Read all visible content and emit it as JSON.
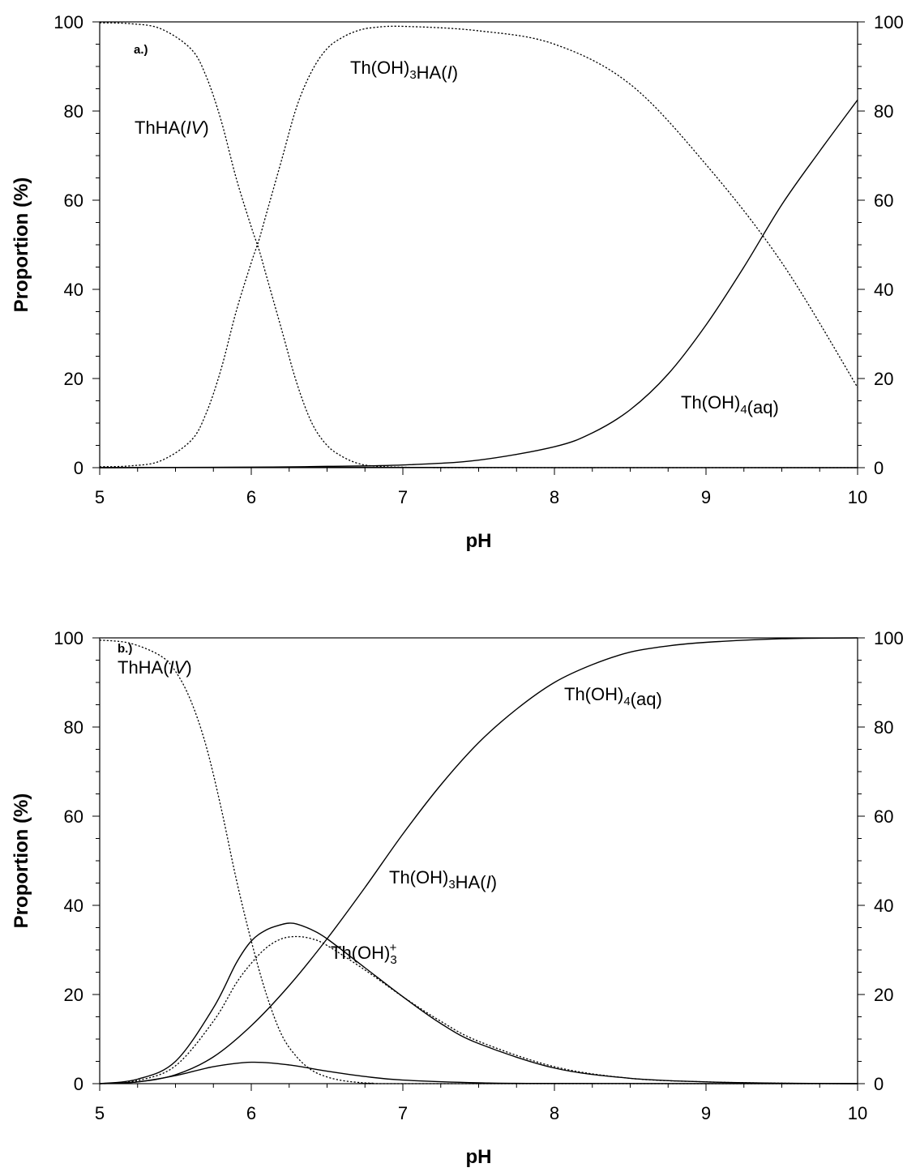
{
  "chart_data": [
    {
      "type": "line",
      "panel_label": "a.)",
      "xlabel": "pH",
      "ylabel": "Proportion (%)",
      "xlim": [
        5,
        10
      ],
      "ylim": [
        0,
        100
      ],
      "x_ticks": [
        "5",
        "6",
        "7",
        "8",
        "9",
        "10"
      ],
      "y_ticks": [
        "0",
        "20",
        "40",
        "60",
        "80",
        "100"
      ],
      "right_y_ticks": [
        "0",
        "20",
        "40",
        "60",
        "80",
        "100"
      ],
      "series": [
        {
          "label_parts": [
            {
              "t": "ThHA("
            },
            {
              "t": "IV",
              "it": true
            },
            {
              "t": ")"
            }
          ],
          "style": "dotted",
          "x": [
            5.0,
            5.2,
            5.4,
            5.6,
            5.7,
            5.8,
            5.9,
            6.0,
            6.05,
            6.1,
            6.2,
            6.3,
            6.4,
            6.5,
            6.6,
            6.7,
            6.8,
            7.0,
            7.5,
            10.0
          ],
          "y": [
            99.8,
            99.6,
            98.5,
            94.0,
            88.0,
            78.0,
            65.0,
            54.0,
            49.0,
            43.0,
            31.0,
            19.0,
            10.0,
            5.0,
            2.5,
            1.0,
            0.4,
            0.1,
            0.0,
            0.0
          ]
        },
        {
          "label_parts": [
            {
              "t": "Th(OH)"
            },
            {
              "t": "3",
              "sub": true
            },
            {
              "t": "HA("
            },
            {
              "t": "I",
              "it": true
            },
            {
              "t": ")"
            }
          ],
          "style": "dotted",
          "x": [
            5.0,
            5.2,
            5.4,
            5.6,
            5.7,
            5.8,
            5.9,
            6.0,
            6.05,
            6.1,
            6.2,
            6.3,
            6.4,
            6.5,
            6.6,
            6.7,
            6.8,
            7.0,
            7.5,
            8.0,
            8.5,
            9.0,
            9.5,
            10.0
          ],
          "y": [
            0.2,
            0.4,
            1.5,
            6.0,
            12.0,
            22.0,
            35.0,
            46.0,
            51.0,
            57.0,
            69.0,
            81.0,
            89.0,
            94.0,
            96.5,
            98.0,
            98.7,
            99.0,
            98.0,
            95.0,
            86.0,
            68.0,
            46.0,
            18.0
          ]
        },
        {
          "label_parts": [
            {
              "t": "Th(OH)"
            },
            {
              "t": "4",
              "sub": true
            },
            {
              "t": "(aq)"
            }
          ],
          "style": "solid",
          "x": [
            5.0,
            6.0,
            6.5,
            7.0,
            7.5,
            8.0,
            8.25,
            8.5,
            8.75,
            9.0,
            9.25,
            9.5,
            9.75,
            10.0
          ],
          "y": [
            0.0,
            0.1,
            0.3,
            0.6,
            1.7,
            4.7,
            7.8,
            13.0,
            21.0,
            32.0,
            45.0,
            59.0,
            71.0,
            82.5
          ]
        },
        {
          "label_parts": [],
          "style": "solid",
          "x": [
            5.0,
            5.5,
            6.0,
            6.5,
            7.0,
            8.0,
            10.0
          ],
          "y": [
            0.0,
            0.05,
            0.1,
            0.1,
            0.05,
            0.02,
            0.0
          ]
        }
      ]
    },
    {
      "type": "line",
      "panel_label": "b.)",
      "xlabel": "pH",
      "ylabel": "Proportion (%)",
      "xlim": [
        5,
        10
      ],
      "ylim": [
        0,
        100
      ],
      "x_ticks": [
        "5",
        "6",
        "7",
        "8",
        "9",
        "10"
      ],
      "y_ticks": [
        "0",
        "20",
        "40",
        "60",
        "80",
        "100"
      ],
      "right_y_ticks": [
        "0",
        "20",
        "40",
        "60",
        "80",
        "100"
      ],
      "series": [
        {
          "label_parts": [
            {
              "t": "ThHA("
            },
            {
              "t": "IV",
              "it": true
            },
            {
              "t": ")"
            }
          ],
          "style": "dotted",
          "x": [
            5.0,
            5.2,
            5.4,
            5.5,
            5.6,
            5.7,
            5.8,
            5.9,
            6.0,
            6.1,
            6.2,
            6.3,
            6.4,
            6.5,
            6.6,
            6.7,
            6.8,
            7.0,
            10.0
          ],
          "y": [
            99.5,
            98.8,
            96.0,
            92.5,
            86.0,
            76.0,
            62.0,
            46.0,
            32.0,
            20.0,
            11.0,
            6.0,
            3.0,
            1.5,
            0.7,
            0.3,
            0.1,
            0.0,
            0.0
          ]
        },
        {
          "label_parts": [
            {
              "t": "Th(OH)"
            },
            {
              "t": "4",
              "sub": true
            },
            {
              "t": "(aq)"
            }
          ],
          "style": "solid",
          "x": [
            5.0,
            5.25,
            5.5,
            5.75,
            6.0,
            6.25,
            6.5,
            6.75,
            7.0,
            7.25,
            7.5,
            7.75,
            8.0,
            8.25,
            8.5,
            8.75,
            9.0,
            9.5,
            10.0
          ],
          "y": [
            0.0,
            0.4,
            2.0,
            6.0,
            13.0,
            22.0,
            32.5,
            44.0,
            56.0,
            67.0,
            76.5,
            84.0,
            90.0,
            94.0,
            96.8,
            98.2,
            99.0,
            99.8,
            100.0
          ]
        },
        {
          "label_parts": [
            {
              "t": "Th(OH)"
            },
            {
              "t": "3",
              "sub": true
            },
            {
              "t": "HA("
            },
            {
              "t": "I",
              "it": true
            },
            {
              "t": ")"
            }
          ],
          "style": "dotted",
          "x": [
            5.0,
            5.25,
            5.5,
            5.75,
            5.9,
            6.0,
            6.1,
            6.2,
            6.3,
            6.4,
            6.5,
            6.75,
            7.0,
            7.25,
            7.5,
            8.0,
            8.5,
            9.0,
            9.5,
            10.0
          ],
          "y": [
            0.0,
            0.7,
            4.0,
            14.0,
            22.5,
            27.0,
            30.5,
            32.5,
            33.0,
            32.5,
            31.0,
            25.5,
            19.5,
            14.0,
            9.5,
            3.8,
            1.2,
            0.4,
            0.1,
            0.0
          ]
        },
        {
          "label_parts": [
            {
              "t": "Th(OH)"
            },
            {
              "t": "3",
              "sub": true,
              "sup": "+"
            }
          ],
          "style": "solid",
          "x": [
            5.0,
            5.25,
            5.5,
            5.75,
            6.0,
            6.25,
            6.5,
            6.75,
            7.0,
            7.5,
            8.0,
            10.0
          ],
          "y": [
            0.0,
            0.4,
            1.8,
            3.8,
            4.8,
            4.2,
            2.8,
            1.6,
            0.8,
            0.2,
            0.05,
            0.0
          ]
        },
        {
          "label_parts": [],
          "style": "solid",
          "x": [
            5.0,
            5.25,
            5.5,
            5.75,
            5.9,
            6.0,
            6.1,
            6.2,
            6.25,
            6.3,
            6.4,
            6.5,
            6.75,
            7.0,
            7.25,
            7.5,
            8.0,
            8.5,
            9.0,
            9.5,
            10.0
          ],
          "y": [
            0.0,
            1.0,
            5.0,
            17.0,
            27.0,
            32.0,
            34.5,
            35.7,
            36.0,
            35.8,
            34.5,
            32.5,
            26.0,
            19.5,
            13.5,
            9.0,
            3.5,
            1.2,
            0.4,
            0.1,
            0.0
          ]
        }
      ]
    }
  ]
}
